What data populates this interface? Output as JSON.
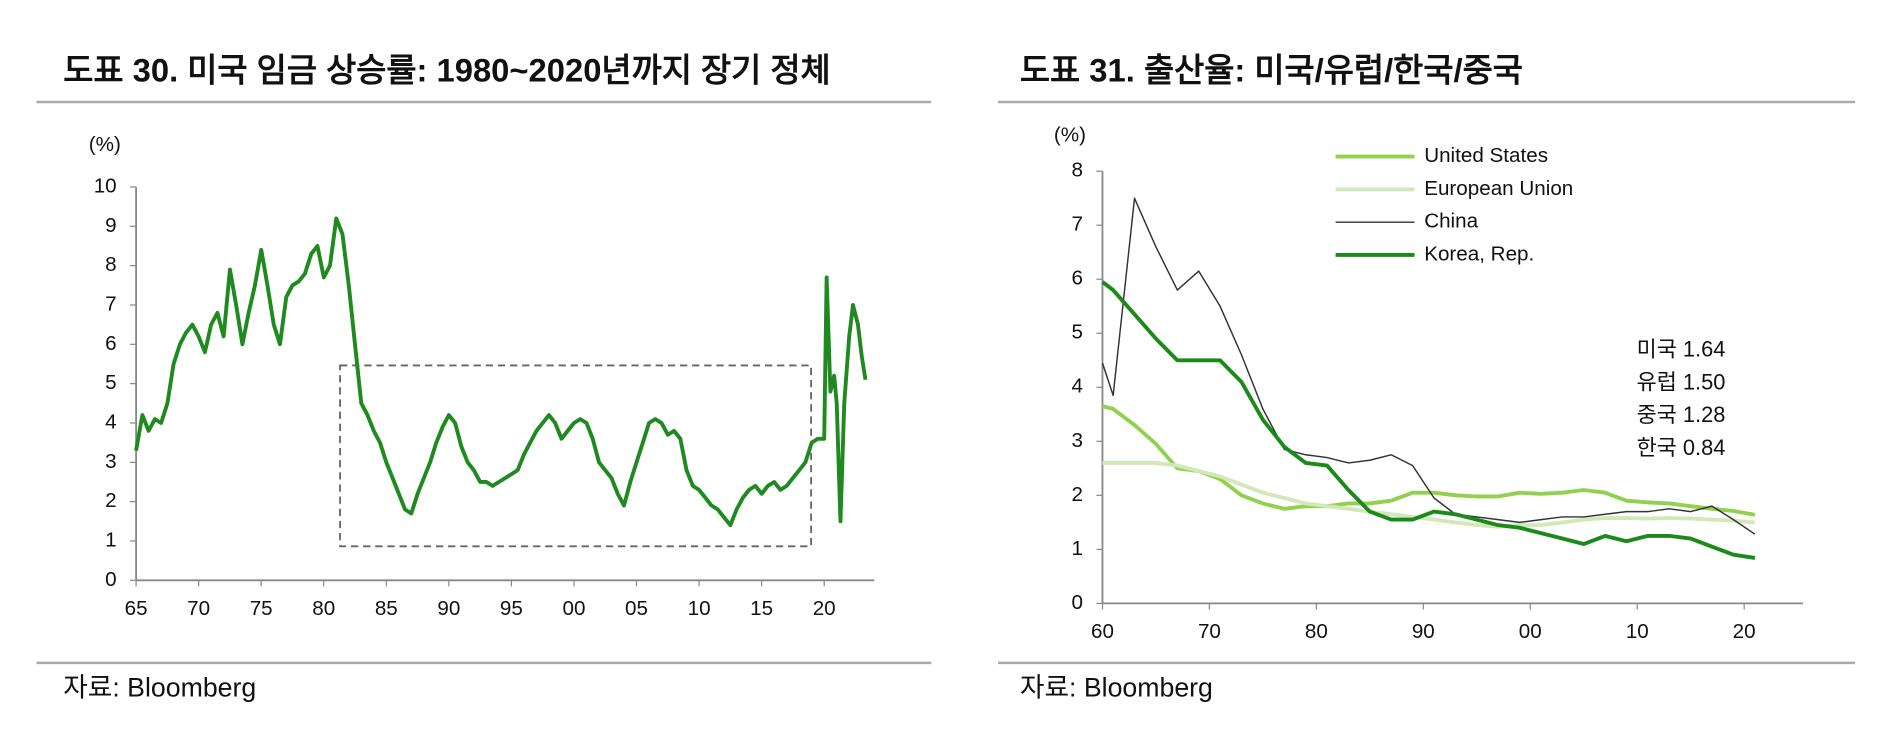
{
  "chart_data": [
    {
      "type": "line",
      "title": "도표 30. 미국 임금 상승률: 1980~2020년까지 장기 정체",
      "y_label": "(%)",
      "source": "자료: Bloomberg",
      "color": "#1f8a1f",
      "x": [
        1965,
        1965.5,
        1966,
        1966.5,
        1967,
        1967.5,
        1968,
        1968.5,
        1969,
        1969.5,
        1970,
        1970.5,
        1971,
        1971.5,
        1972,
        1972.5,
        1973,
        1973.5,
        1974,
        1974.5,
        1975,
        1975.5,
        1976,
        1976.5,
        1977,
        1977.5,
        1978,
        1978.5,
        1979,
        1979.5,
        1980,
        1980.5,
        1981,
        1981.5,
        1982,
        1982.5,
        1983,
        1983.5,
        1984,
        1984.5,
        1985,
        1985.5,
        1986,
        1986.5,
        1987,
        1987.5,
        1988,
        1988.5,
        1989,
        1989.5,
        1990,
        1990.5,
        1991,
        1991.5,
        1992,
        1992.5,
        1993,
        1993.5,
        1994,
        1994.5,
        1995,
        1995.5,
        1996,
        1996.5,
        1997,
        1997.5,
        1998,
        1998.5,
        1999,
        1999.5,
        2000,
        2000.5,
        2001,
        2001.5,
        2002,
        2002.5,
        2003,
        2003.5,
        2004,
        2004.5,
        2005,
        2005.5,
        2006,
        2006.5,
        2007,
        2007.5,
        2008,
        2008.5,
        2009,
        2009.5,
        2010,
        2010.5,
        2011,
        2011.5,
        2012,
        2012.5,
        2013,
        2013.5,
        2014,
        2014.5,
        2015,
        2015.5,
        2016,
        2016.5,
        2017,
        2017.5,
        2018,
        2018.5,
        2019,
        2019.5,
        2020,
        2020.2,
        2020.5,
        2020.8,
        2021,
        2021.3,
        2021.6,
        2022,
        2022.3,
        2022.7,
        2023,
        2023.3
      ],
      "values": [
        3.3,
        4.2,
        3.8,
        4.1,
        4.0,
        4.5,
        5.5,
        6.0,
        6.3,
        6.5,
        6.2,
        5.8,
        6.5,
        6.8,
        6.2,
        7.9,
        7.0,
        6.0,
        6.8,
        7.5,
        8.4,
        7.5,
        6.5,
        6.0,
        7.2,
        7.5,
        7.6,
        7.8,
        8.3,
        8.5,
        7.7,
        8.0,
        9.2,
        8.8,
        7.5,
        6.0,
        4.5,
        4.2,
        3.8,
        3.5,
        3.0,
        2.6,
        2.2,
        1.8,
        1.7,
        2.2,
        2.6,
        3.0,
        3.5,
        3.9,
        4.2,
        4.0,
        3.4,
        3.0,
        2.8,
        2.5,
        2.5,
        2.4,
        2.5,
        2.6,
        2.7,
        2.8,
        3.2,
        3.5,
        3.8,
        4.0,
        4.2,
        4.0,
        3.6,
        3.8,
        4.0,
        4.1,
        4.0,
        3.6,
        3.0,
        2.8,
        2.6,
        2.2,
        1.9,
        2.5,
        3.0,
        3.5,
        4.0,
        4.1,
        4.0,
        3.7,
        3.8,
        3.6,
        2.8,
        2.4,
        2.3,
        2.1,
        1.9,
        1.8,
        1.6,
        1.4,
        1.8,
        2.1,
        2.3,
        2.4,
        2.2,
        2.4,
        2.5,
        2.3,
        2.4,
        2.6,
        2.8,
        3.0,
        3.5,
        3.6,
        3.6,
        7.7,
        4.8,
        5.2,
        4.5,
        1.5,
        4.5,
        6.2,
        7.0,
        6.5,
        5.7,
        5.1
      ],
      "xlim": [
        1965,
        2024
      ],
      "ylim": [
        0,
        10
      ],
      "xticks": [
        {
          "value": 1965,
          "label": "65"
        },
        {
          "value": 1970,
          "label": "70"
        },
        {
          "value": 1975,
          "label": "75"
        },
        {
          "value": 1980,
          "label": "80"
        },
        {
          "value": 1985,
          "label": "85"
        },
        {
          "value": 1990,
          "label": "90"
        },
        {
          "value": 1995,
          "label": "95"
        },
        {
          "value": 2000,
          "label": "00"
        },
        {
          "value": 2005,
          "label": "05"
        },
        {
          "value": 2010,
          "label": "10"
        },
        {
          "value": 2015,
          "label": "15"
        },
        {
          "value": 2020,
          "label": "20"
        }
      ],
      "yticks": [
        0,
        1,
        2,
        3,
        4,
        5,
        6,
        7,
        8,
        9,
        10
      ]
    },
    {
      "type": "line",
      "title": "도표 31. 출산율: 미국/유럽/한국/중국",
      "y_label": "(%)",
      "source": "자료: Bloomberg",
      "x": [
        1960,
        1961,
        1963,
        1965,
        1967,
        1969,
        1971,
        1973,
        1975,
        1977,
        1979,
        1981,
        1983,
        1985,
        1987,
        1989,
        1991,
        1993,
        1995,
        1997,
        1999,
        2001,
        2003,
        2005,
        2007,
        2009,
        2011,
        2013,
        2015,
        2017,
        2019,
        2021
      ],
      "series": [
        {
          "name": "United States",
          "color": "#92d050",
          "values": [
            3.65,
            3.6,
            3.3,
            2.95,
            2.5,
            2.45,
            2.3,
            2.0,
            1.85,
            1.75,
            1.8,
            1.8,
            1.85,
            1.85,
            1.9,
            2.05,
            2.05,
            2.0,
            1.98,
            1.98,
            2.05,
            2.03,
            2.05,
            2.1,
            2.05,
            1.9,
            1.87,
            1.85,
            1.8,
            1.75,
            1.71,
            1.64
          ]
        },
        {
          "name": "European Union",
          "color": "#d3e8b8",
          "values": [
            2.6,
            2.6,
            2.6,
            2.6,
            2.55,
            2.45,
            2.35,
            2.2,
            2.05,
            1.95,
            1.85,
            1.8,
            1.75,
            1.7,
            1.65,
            1.6,
            1.55,
            1.5,
            1.45,
            1.42,
            1.45,
            1.45,
            1.5,
            1.55,
            1.58,
            1.58,
            1.57,
            1.58,
            1.57,
            1.55,
            1.53,
            1.5
          ]
        },
        {
          "name": "China",
          "color": "#333333",
          "values": [
            4.45,
            3.85,
            7.5,
            6.6,
            5.8,
            6.15,
            5.5,
            4.6,
            3.6,
            2.85,
            2.75,
            2.7,
            2.6,
            2.65,
            2.75,
            2.55,
            1.95,
            1.65,
            1.6,
            1.55,
            1.5,
            1.55,
            1.6,
            1.6,
            1.65,
            1.7,
            1.7,
            1.75,
            1.7,
            1.8,
            1.55,
            1.28
          ]
        },
        {
          "name": "Korea, Rep.",
          "color": "#1a8a1a",
          "values": [
            5.95,
            5.8,
            5.35,
            4.9,
            4.5,
            4.5,
            4.5,
            4.1,
            3.4,
            2.9,
            2.6,
            2.55,
            2.1,
            1.7,
            1.55,
            1.55,
            1.7,
            1.65,
            1.55,
            1.45,
            1.4,
            1.3,
            1.2,
            1.1,
            1.25,
            1.15,
            1.25,
            1.25,
            1.2,
            1.05,
            0.9,
            0.84
          ]
        }
      ],
      "annotations": [
        "미국 1.64",
        "유럽 1.50",
        "중국 1.28",
        "한국 0.84"
      ],
      "xlim": [
        1960,
        2025.5
      ],
      "ylim": [
        0,
        8
      ],
      "xticks": [
        {
          "value": 1960,
          "label": "60"
        },
        {
          "value": 1970,
          "label": "70"
        },
        {
          "value": 1980,
          "label": "80"
        },
        {
          "value": 1990,
          "label": "90"
        },
        {
          "value": 2000,
          "label": "00"
        },
        {
          "value": 2010,
          "label": "10"
        },
        {
          "value": 2020,
          "label": "20"
        }
      ],
      "yticks": [
        0,
        1,
        2,
        3,
        4,
        5,
        6,
        7,
        8
      ]
    }
  ]
}
